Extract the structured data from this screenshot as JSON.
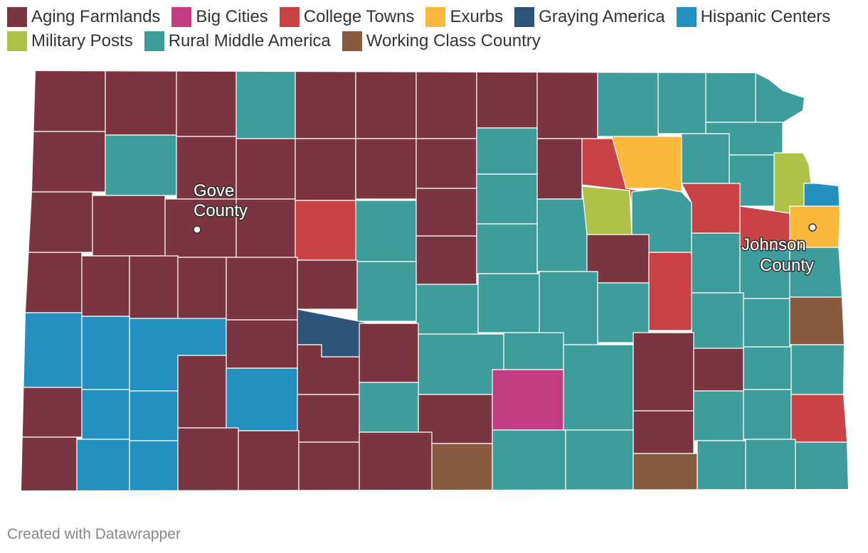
{
  "categories": [
    {
      "id": "aging",
      "label": "Aging Farmlands",
      "color": "#7a3540"
    },
    {
      "id": "big",
      "label": "Big Cities",
      "color": "#c33b82"
    },
    {
      "id": "college",
      "label": "College Towns",
      "color": "#c94346"
    },
    {
      "id": "exurbs",
      "label": "Exurbs",
      "color": "#fbb83a"
    },
    {
      "id": "graying",
      "label": "Graying America",
      "color": "#2f5479"
    },
    {
      "id": "hispanic",
      "label": "Hispanic Centers",
      "color": "#2390c0"
    },
    {
      "id": "military",
      "label": "Military Posts",
      "color": "#aec148"
    },
    {
      "id": "rural",
      "label": "Rural Middle America",
      "color": "#3c9d9a"
    },
    {
      "id": "working",
      "label": "Working Class Country",
      "color": "#885a3f"
    }
  ],
  "legend": {
    "aging": "Aging Farmlands",
    "big": "Big Cities",
    "college": "College Towns",
    "exurbs": "Exurbs",
    "graying": "Graying America",
    "hispanic": "Hispanic Centers",
    "military": "Military Posts",
    "rural": "Rural Middle America",
    "working": "Working Class Country"
  },
  "annotations": {
    "gove_line1": "Gove",
    "gove_line2": "County",
    "johnson_line1": "Johnson",
    "johnson_line2": "County"
  },
  "credit": "Created with Datawrapper"
}
